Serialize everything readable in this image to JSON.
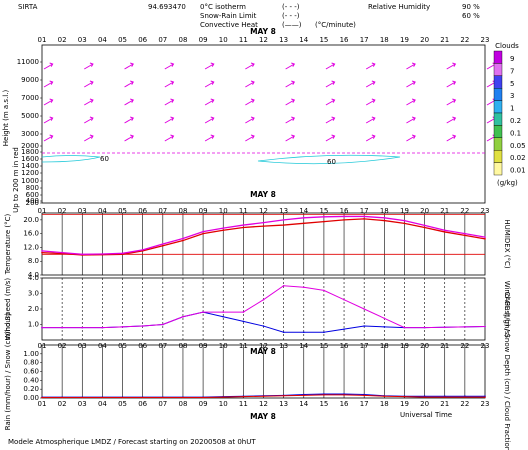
{
  "header": {
    "station": "SIRTA",
    "coords": "94.693470",
    "legend_items": [
      {
        "label": "0°C isotherm",
        "symbol": "(- - -)",
        "color": "#e020e0"
      },
      {
        "label": "Snow-Rain Limit",
        "symbol": "(- - -)",
        "color": "#e020e0"
      },
      {
        "label": "Convective Heat",
        "symbol": "(——)",
        "color": "#e00000",
        "unit": "(°C/minute)"
      }
    ],
    "rh_legend": [
      {
        "label": "Relative Humidity",
        "value": "90 %",
        "color": "#20c8d8"
      },
      {
        "label": "",
        "value": "60 %",
        "color": "#20c8d8"
      }
    ]
  },
  "hours": [
    "01",
    "02",
    "03",
    "04",
    "05",
    "06",
    "07",
    "08",
    "09",
    "10",
    "11",
    "12",
    "13",
    "14",
    "15",
    "16",
    "17",
    "18",
    "19",
    "20",
    "21",
    "22",
    "23"
  ],
  "date_label": "MAY  8",
  "x_caption": "Universal Time",
  "footer": "Modele Atmospherique LMDZ / Forecast starting on 20200508 at 0hUT",
  "chart_data": [
    {
      "type": "wind-profile",
      "ylabel": "Height  (m a.s.l.)",
      "yticks": [
        "11000",
        "9000",
        "7000",
        "5000",
        "3000",
        "2000",
        "1800",
        "1600",
        "1400",
        "1200",
        "1000",
        "800",
        "600",
        "400",
        "200"
      ],
      "sublabel": "Up to 200 m in red",
      "wind_levels": [
        10500,
        8500,
        6500,
        4500,
        2500
      ],
      "wind_direction_deg": [
        30,
        30,
        30,
        30,
        30
      ],
      "isotherm_0C_m": 2400,
      "rh_contours": [
        "90",
        "60"
      ],
      "colorbar": {
        "title": "Clouds",
        "unit": "(g/kg)",
        "labels": [
          "9",
          "7",
          "5",
          "3",
          "1",
          "0.2",
          "0.1",
          "0.05",
          "0.02",
          "0.01"
        ],
        "colors": [
          "#c000e0",
          "#e070f0",
          "#4040f0",
          "#2080f0",
          "#30b0f0",
          "#30c0a0",
          "#40c050",
          "#90d040",
          "#e0e040",
          "#fff8a0"
        ]
      }
    },
    {
      "type": "line",
      "ylabel": "Temperature (°C)",
      "y2label": "HUMIDEX (°C)",
      "yticks": [
        "20.0",
        "16.0",
        "12.0",
        "8.0",
        "4.0"
      ],
      "ylim": [
        4,
        22
      ],
      "x": [
        1,
        2,
        3,
        4,
        5,
        6,
        7,
        8,
        9,
        10,
        11,
        12,
        13,
        14,
        15,
        16,
        17,
        18,
        19,
        20,
        21,
        22,
        23
      ],
      "series": [
        {
          "name": "Temperature",
          "color": "#e00000",
          "values": [
            10.5,
            10.2,
            9.8,
            9.9,
            10.0,
            11.0,
            12.5,
            14.0,
            16.0,
            17.0,
            17.8,
            18.2,
            18.5,
            19.0,
            19.5,
            20.0,
            20.3,
            19.8,
            19.0,
            17.8,
            16.5,
            15.5,
            14.5
          ]
        },
        {
          "name": "Humidex",
          "color": "#e000e0",
          "values": [
            11.0,
            10.5,
            10.0,
            10.1,
            10.3,
            11.3,
            13.0,
            14.6,
            16.6,
            17.6,
            18.5,
            19.2,
            20.0,
            20.6,
            20.9,
            21.0,
            21.0,
            20.6,
            19.8,
            18.4,
            17.0,
            16.0,
            15.0
          ]
        }
      ],
      "reference_lines": [
        {
          "value": 21.6,
          "color": "#e00000"
        },
        {
          "value": 10.0,
          "color": "#e00000"
        }
      ]
    },
    {
      "type": "line",
      "ylabel": "Wind Speed (m/s)",
      "y2label": "Wind Gust (m/s)",
      "yticks": [
        "4.0",
        "3.0",
        "2.0",
        "1.0"
      ],
      "ylim": [
        0,
        4
      ],
      "x": [
        1,
        2,
        3,
        4,
        5,
        6,
        7,
        8,
        9,
        10,
        11,
        12,
        13,
        14,
        15,
        16,
        17,
        18,
        19,
        20,
        21,
        22,
        23
      ],
      "series": [
        {
          "name": "Wind Speed",
          "color": "#0000e0",
          "values": [
            0.8,
            0.8,
            0.8,
            0.8,
            0.85,
            0.9,
            1.0,
            1.5,
            1.8,
            1.5,
            1.2,
            0.9,
            0.5,
            0.5,
            0.5,
            0.7,
            0.9,
            0.85,
            0.8,
            0.8,
            0.82,
            0.85,
            0.87
          ]
        },
        {
          "name": "Wind Gust",
          "color": "#e000e0",
          "values": [
            0.8,
            0.8,
            0.8,
            0.8,
            0.85,
            0.9,
            1.0,
            1.5,
            1.8,
            1.8,
            1.8,
            2.6,
            3.5,
            3.4,
            3.2,
            2.6,
            2.0,
            1.4,
            0.8,
            0.8,
            0.82,
            0.85,
            0.87
          ]
        }
      ]
    },
    {
      "type": "line",
      "ylabel": "Rain (mm/hour) / Snow (cm/hour)",
      "y2label": "CAPE (J/g) / Snow Depth (cm) / Cloud Fraction",
      "yticks": [
        "1.00",
        "0.80",
        "0.60",
        "0.40",
        "0.20",
        "0.00"
      ],
      "ylim": [
        0,
        1.2
      ],
      "x": [
        1,
        2,
        3,
        4,
        5,
        6,
        7,
        8,
        9,
        10,
        11,
        12,
        13,
        14,
        15,
        16,
        17,
        18,
        19,
        20,
        21,
        22,
        23
      ],
      "series": [
        {
          "name": "Rain",
          "color": "#0000e0",
          "values": [
            0.02,
            0.02,
            0.02,
            0.02,
            0.02,
            0.02,
            0.02,
            0.02,
            0.02,
            0.03,
            0.04,
            0.05,
            0.06,
            0.08,
            0.09,
            0.09,
            0.08,
            0.05,
            0.04,
            0.04,
            0.04,
            0.04,
            0.04
          ]
        },
        {
          "name": "CAPE",
          "color": "#e00000",
          "values": [
            0.01,
            0.01,
            0.01,
            0.01,
            0.01,
            0.01,
            0.01,
            0.01,
            0.01,
            0.02,
            0.03,
            0.04,
            0.05,
            0.06,
            0.07,
            0.07,
            0.06,
            0.04,
            0.03,
            0.02,
            0.02,
            0.02,
            0.02
          ]
        }
      ]
    }
  ]
}
